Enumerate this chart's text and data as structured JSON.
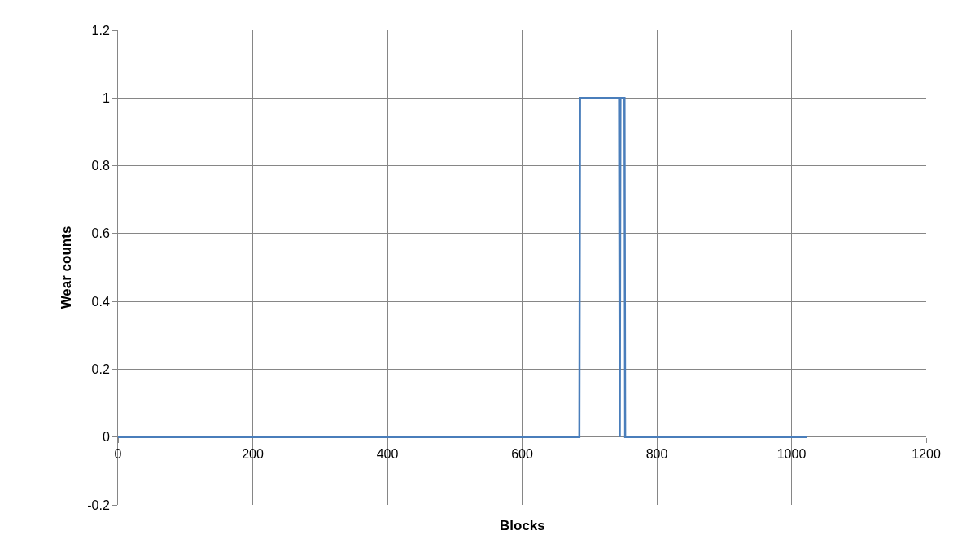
{
  "chart_data": {
    "type": "line",
    "xlabel": "Blocks",
    "ylabel": "Wear counts",
    "x": [
      0,
      685,
      686,
      744,
      745,
      746,
      752,
      753,
      1023
    ],
    "series": [
      {
        "color": "#4a7ebb",
        "values": [
          0,
          0,
          1,
          1,
          0,
          1,
          1,
          0,
          0
        ]
      }
    ],
    "xlim": [
      0,
      1200
    ],
    "xticks": [
      0,
      200,
      400,
      600,
      800,
      1000,
      1200
    ],
    "ylim": [
      -0.2,
      1.2
    ],
    "yticks": [
      -0.2,
      0,
      0.2,
      0.4,
      0.6,
      0.8,
      1,
      1.2
    ],
    "grid": true,
    "marker": "none",
    "line_style": "solid"
  }
}
